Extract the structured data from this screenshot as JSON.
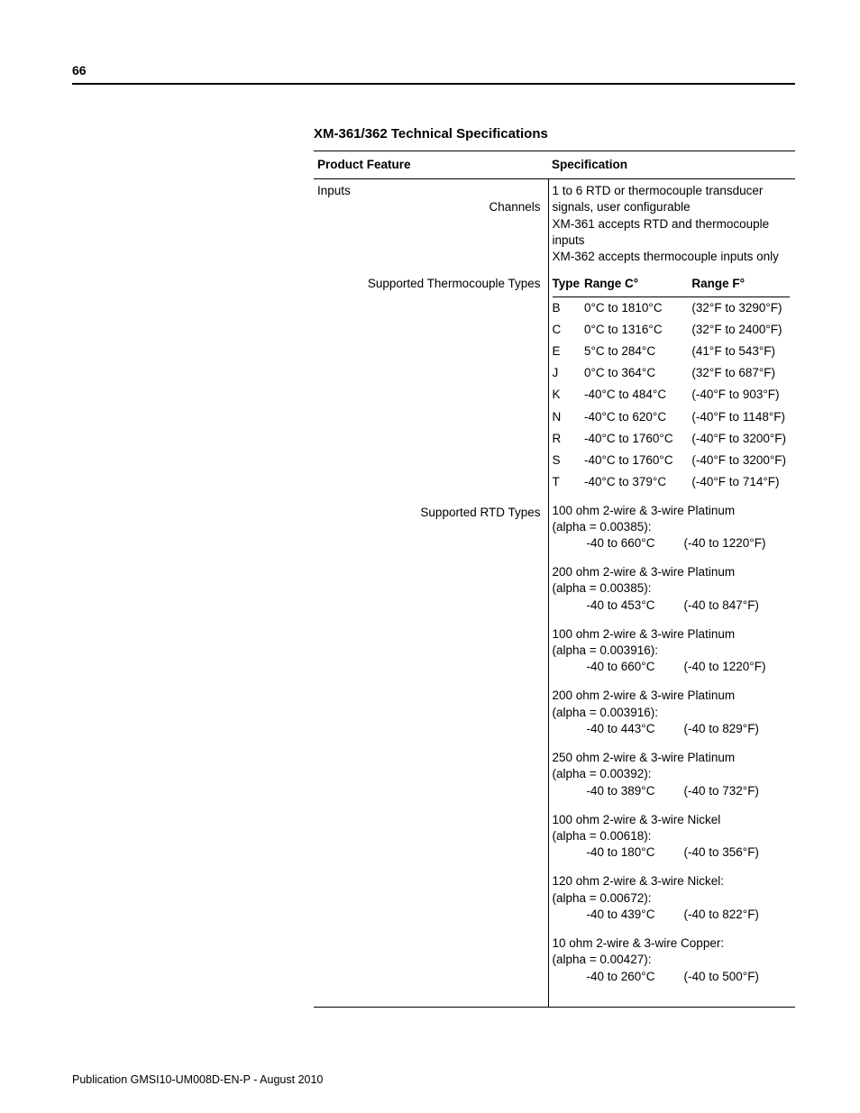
{
  "page_number": "66",
  "title": "XM-361/362 Technical Specifications",
  "header": {
    "feature": "Product Feature",
    "spec": "Specification"
  },
  "inputs_heading": "Inputs",
  "row_channels": {
    "label": "Channels",
    "line1": "1 to 6 RTD or thermocouple transducer signals, user configurable",
    "line2": "XM-361 accepts RTD and thermocouple inputs",
    "line3": "XM-362 accepts thermocouple inputs only"
  },
  "row_tc": {
    "label": "Supported Thermocouple Types",
    "head_type": "Type",
    "head_c": "Range C°",
    "head_f": "Range F°",
    "rows": [
      {
        "t": "B",
        "c": "0°C to 1810°C",
        "f": "(32°F to 3290°F)"
      },
      {
        "t": "C",
        "c": "0°C to 1316°C",
        "f": "(32°F to 2400°F)"
      },
      {
        "t": "E",
        "c": "5°C to 284°C",
        "f": "(41°F to 543°F)"
      },
      {
        "t": "J",
        "c": "0°C to 364°C",
        "f": "(32°F to 687°F)"
      },
      {
        "t": "K",
        "c": "-40°C to 484°C",
        "f": "(-40°F to 903°F)"
      },
      {
        "t": "N",
        "c": "-40°C to 620°C",
        "f": "(-40°F to 1148°F)"
      },
      {
        "t": "R",
        "c": "-40°C to 1760°C",
        "f": "(-40°F to 3200°F)"
      },
      {
        "t": "S",
        "c": "-40°C to 1760°C",
        "f": "(-40°F to 3200°F)"
      },
      {
        "t": "T",
        "c": "-40°C to 379°C",
        "f": "(-40°F to 714°F)"
      }
    ]
  },
  "row_rtd": {
    "label": "Supported RTD Types",
    "blocks": [
      {
        "d": "100 ohm 2-wire & 3-wire Platinum",
        "a": "(alpha = 0.00385):",
        "c": "-40 to 660°C",
        "f": "(-40 to 1220°F)"
      },
      {
        "d": "200 ohm 2-wire & 3-wire Platinum",
        "a": "(alpha = 0.00385):",
        "c": "-40 to 453°C",
        "f": "(-40 to 847°F)"
      },
      {
        "d": "100 ohm 2-wire & 3-wire Platinum",
        "a": "(alpha = 0.003916):",
        "c": "-40 to 660°C",
        "f": "(-40 to 1220°F)"
      },
      {
        "d": "200 ohm 2-wire & 3-wire Platinum",
        "a": "(alpha = 0.003916):",
        "c": "-40 to 443°C",
        "f": "(-40 to 829°F)"
      },
      {
        "d": "250 ohm 2-wire & 3-wire Platinum",
        "a": "(alpha = 0.00392):",
        "c": "-40 to 389°C",
        "f": "(-40 to 732°F)"
      },
      {
        "d": "100 ohm 2-wire & 3-wire Nickel",
        "a": "(alpha = 0.00618):",
        "c": "-40 to 180°C",
        "f": "(-40 to 356°F)"
      },
      {
        "d": "120 ohm 2-wire & 3-wire Nickel:",
        "a": "(alpha = 0.00672):",
        "c": "-40 to 439°C",
        "f": "(-40 to 822°F)"
      },
      {
        "d": "10 ohm 2-wire & 3-wire Copper:",
        "a": "(alpha = 0.00427):",
        "c": "-40 to 260°C",
        "f": "(-40 to 500°F)"
      }
    ]
  },
  "footer": "Publication GMSI10-UM008D-EN-P - August 2010"
}
